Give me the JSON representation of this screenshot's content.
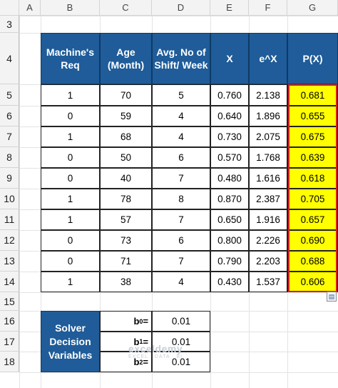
{
  "columns": [
    "A",
    "B",
    "C",
    "D",
    "E",
    "F",
    "G"
  ],
  "rows": [
    "3",
    "4",
    "5",
    "6",
    "7",
    "8",
    "9",
    "10",
    "11",
    "12",
    "13",
    "14",
    "15",
    "16",
    "17",
    "18"
  ],
  "table": {
    "headers": [
      "Machine's Req",
      "Age (Month)",
      "Avg. No of Shift/ Week",
      "X",
      "e^X",
      "P(X)"
    ],
    "data": [
      [
        "1",
        "70",
        "5",
        "0.760",
        "2.138",
        "0.681"
      ],
      [
        "0",
        "59",
        "4",
        "0.640",
        "1.896",
        "0.655"
      ],
      [
        "1",
        "68",
        "4",
        "0.730",
        "2.075",
        "0.675"
      ],
      [
        "0",
        "50",
        "6",
        "0.570",
        "1.768",
        "0.639"
      ],
      [
        "0",
        "40",
        "7",
        "0.480",
        "1.616",
        "0.618"
      ],
      [
        "1",
        "78",
        "8",
        "0.870",
        "2.387",
        "0.705"
      ],
      [
        "1",
        "57",
        "7",
        "0.650",
        "1.916",
        "0.657"
      ],
      [
        "0",
        "73",
        "6",
        "0.800",
        "2.226",
        "0.690"
      ],
      [
        "0",
        "71",
        "7",
        "0.790",
        "2.203",
        "0.688"
      ],
      [
        "1",
        "38",
        "4",
        "0.430",
        "1.537",
        "0.606"
      ]
    ]
  },
  "solver": {
    "label": "Solver Decision Variables",
    "vars": [
      {
        "name": "b",
        "sub": "0",
        "suffix": " =",
        "value": "0.01"
      },
      {
        "name": "b",
        "sub": "1",
        "suffix": " =",
        "value": "0.01"
      },
      {
        "name": "b",
        "sub": "2",
        "suffix": " =",
        "value": "0.01"
      }
    ]
  },
  "watermark": {
    "title": "exceldemy",
    "subtitle": "EXCEL · DATA · BI"
  },
  "colors": {
    "header_fill": "#1f5c99",
    "highlight": "#ffff00",
    "highlight_border": "#d02020"
  }
}
